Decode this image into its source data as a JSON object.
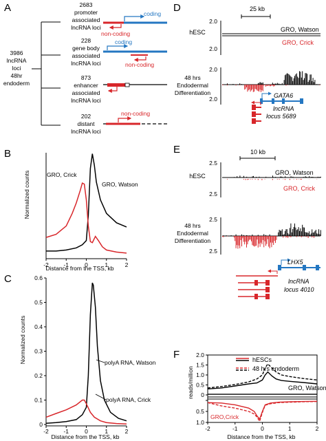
{
  "colors": {
    "red": "#d8262a",
    "blue": "#2477c2",
    "black": "#000000"
  },
  "panel_a": {
    "letter": "A",
    "root_label": [
      "3986",
      "lncRNA",
      "loci",
      "48hr",
      "endoderm"
    ],
    "groups": [
      {
        "count": "2683",
        "lines": [
          "promoter",
          "associated",
          "lncRNA loci"
        ],
        "coding_label": "coding",
        "noncoding_label": "non-coding"
      },
      {
        "count": "228",
        "lines": [
          "gene body",
          "associated",
          "lncRNA loci"
        ],
        "coding_label": "coding",
        "noncoding_label": "non-coding"
      },
      {
        "count": "873",
        "lines": [
          "enhancer",
          "associated",
          "lncRNA loci"
        ]
      },
      {
        "count": "202",
        "lines": [
          "distant",
          "lncRNA loci"
        ],
        "noncoding_label": "non-coding"
      }
    ]
  },
  "panel_d": {
    "letter": "D",
    "scale": "25 kb",
    "row1": "hESC",
    "row2": [
      "48 hrs",
      "Endodermal",
      "Differentiation"
    ],
    "gro_watson": "GRO, Watson",
    "gro_crick": "GRO, Crick",
    "ytop": "2.0",
    "gene": "GATA6",
    "locus": [
      "lncRNA",
      "locus 5689"
    ]
  },
  "panel_e": {
    "letter": "E",
    "scale": "10 kb",
    "row1": "hESC",
    "row2": [
      "48 hrs",
      "Endodermal",
      "Differentiation"
    ],
    "gro_watson": "GRO, Watson",
    "gro_crick": "GRO, Crick",
    "ytop": "2.5",
    "gene": "LHX5",
    "locus": [
      "lncRNA",
      "locus 4010"
    ]
  },
  "chart_data": [
    {
      "panel": "B",
      "type": "line",
      "xlabel": "Distance from the TSS, kb",
      "ylabel": "Normalized counts",
      "xlim": [
        -2,
        2
      ],
      "ylim": [
        0,
        1
      ],
      "x_ticks": [
        "-2",
        "-1",
        "0",
        "1",
        "2"
      ],
      "series": [
        {
          "name": "GRO, Watson",
          "color": "#000000",
          "x": [
            -2,
            -1.5,
            -1,
            -0.5,
            -0.2,
            0,
            0.1,
            0.2,
            0.3,
            0.4,
            0.5,
            0.7,
            1,
            1.5,
            2
          ],
          "y": [
            0.06,
            0.06,
            0.07,
            0.09,
            0.12,
            0.16,
            0.4,
            0.85,
            0.99,
            0.88,
            0.72,
            0.55,
            0.42,
            0.33,
            0.29
          ]
        },
        {
          "name": "GRO, Crick",
          "color": "#d8262a",
          "x": [
            -2,
            -1.5,
            -1,
            -0.7,
            -0.5,
            -0.3,
            -0.2,
            -0.1,
            0,
            0.1,
            0.2,
            0.3,
            0.45,
            0.6,
            0.8,
            1,
            1.5,
            2
          ],
          "y": [
            0.19,
            0.22,
            0.3,
            0.42,
            0.52,
            0.64,
            0.71,
            0.7,
            0.55,
            0.3,
            0.15,
            0.14,
            0.2,
            0.16,
            0.1,
            0.07,
            0.05,
            0.04
          ]
        }
      ]
    },
    {
      "panel": "C",
      "type": "line",
      "xlabel": "Distance from the TSS, kb",
      "ylabel": "Normalized counts",
      "xlim": [
        -2,
        2
      ],
      "ylim": [
        0,
        0.6
      ],
      "y_ticks": [
        "0",
        "0.1",
        "0.2",
        "0.3",
        "0.4",
        "0.5",
        "0.6"
      ],
      "x_ticks": [
        "-2",
        "-1",
        "0",
        "1",
        "2"
      ],
      "series": [
        {
          "name": "polyA RNA, Watson",
          "color": "#000000",
          "x": [
            -2,
            -1.5,
            -1,
            -0.5,
            -0.2,
            0,
            0.1,
            0.2,
            0.3,
            0.35,
            0.45,
            0.55,
            0.7,
            0.9,
            1.2,
            1.6,
            2
          ],
          "y": [
            0.005,
            0.008,
            0.012,
            0.02,
            0.04,
            0.07,
            0.2,
            0.45,
            0.58,
            0.57,
            0.48,
            0.32,
            0.18,
            0.1,
            0.05,
            0.025,
            0.015
          ]
        },
        {
          "name": "polyA RNA, Crick",
          "color": "#d8262a",
          "x": [
            -2,
            -1.5,
            -1,
            -0.5,
            -0.2,
            -0.1,
            0,
            0.2,
            0.4,
            0.7,
            1,
            1.5,
            2
          ],
          "y": [
            0.03,
            0.045,
            0.06,
            0.08,
            0.1,
            0.1,
            0.085,
            0.05,
            0.03,
            0.015,
            0.008,
            0.004,
            0.002
          ]
        }
      ]
    },
    {
      "panel": "F",
      "type": "line",
      "xlabel": "Distance from the TSS, kb",
      "ylabel": "reads/million",
      "xlim": [
        -2,
        2
      ],
      "top_yticks": [
        "2.0",
        "1.5",
        "1.0",
        "0.5",
        "0"
      ],
      "bottom_yticks": [
        "0",
        "0.5",
        "1.0"
      ],
      "legend": [
        "hESCs",
        "48 hrs endoderm"
      ],
      "labels": [
        "GRO, Watson",
        "GRO,Crick"
      ],
      "series": [
        {
          "name": "hESCs Watson",
          "color": "#000000",
          "dash": false,
          "x": [
            -2,
            -1.5,
            -1,
            -0.5,
            -0.2,
            0,
            0.1,
            0.2,
            0.35,
            0.5,
            0.7,
            1,
            1.5,
            2
          ],
          "y": [
            0.3,
            0.35,
            0.45,
            0.55,
            0.6,
            0.75,
            1.0,
            1.15,
            0.95,
            0.8,
            0.72,
            0.68,
            0.62,
            0.55
          ]
        },
        {
          "name": "48 hrs endoderm Watson",
          "color": "#000000",
          "dash": true,
          "x": [
            -2,
            -1.5,
            -1,
            -0.5,
            -0.2,
            0,
            0.1,
            0.2,
            0.35,
            0.5,
            0.7,
            1,
            1.5,
            2
          ],
          "y": [
            0.35,
            0.42,
            0.52,
            0.65,
            0.8,
            1.0,
            1.35,
            1.55,
            1.35,
            1.15,
            1.0,
            0.92,
            0.82,
            0.75
          ]
        },
        {
          "name": "hESCs baseline",
          "color": "#000000",
          "dash": false,
          "x": [
            -2,
            2
          ],
          "y": [
            0.03,
            0.03
          ]
        },
        {
          "name": "hESCs Crick",
          "color": "#d8262a",
          "dash": false,
          "x": [
            -2,
            -1.5,
            -1,
            -0.5,
            -0.3,
            -0.2,
            -0.1,
            0,
            0.1,
            0.3,
            0.6,
            1,
            1.5,
            2
          ],
          "y": [
            0.1,
            0.12,
            0.2,
            0.35,
            0.5,
            0.7,
            0.85,
            0.5,
            0.2,
            0.12,
            0.08,
            0.06,
            0.05,
            0.04
          ]
        },
        {
          "name": "48 hrs endoderm Crick",
          "color": "#d8262a",
          "dash": true,
          "x": [
            -2,
            -1.5,
            -1,
            -0.5,
            -0.3,
            -0.2,
            -0.1,
            0,
            0.1,
            0.3,
            0.6,
            1,
            1.5,
            2
          ],
          "y": [
            0.1,
            0.25,
            0.35,
            0.5,
            0.62,
            0.75,
            0.95,
            0.55,
            0.22,
            0.15,
            0.1,
            0.08,
            0.06,
            0.05
          ]
        }
      ]
    }
  ]
}
